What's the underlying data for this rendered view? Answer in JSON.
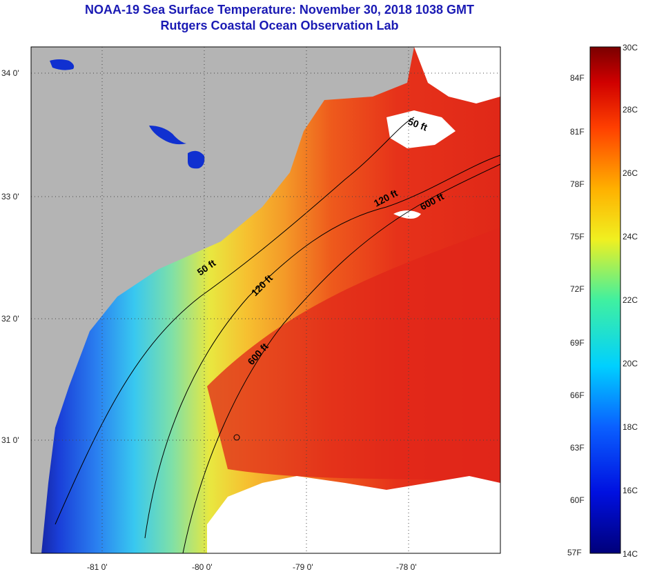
{
  "header": {
    "title": "NOAA-19 Sea Surface Temperature:  November 30, 2018 1038 GMT",
    "subtitle": "Rutgers Coastal Ocean Observation Lab"
  },
  "map": {
    "lat_labels": [
      "34 0'",
      "33 0'",
      "32 0'",
      "31 0'"
    ],
    "lon_labels": [
      "-81 0'",
      "-80 0'",
      "-79 0'",
      "-78 0'"
    ],
    "contour_labels": [
      "50 ft",
      "120 ft",
      "600 ft",
      "50 ft",
      "120 ft",
      "600 ft"
    ]
  },
  "colorbar": {
    "fahrenheit": [
      "84F",
      "81F",
      "78F",
      "75F",
      "72F",
      "69F",
      "66F",
      "63F",
      "60F",
      "57F"
    ],
    "celsius": [
      "30C",
      "28C",
      "26C",
      "24C",
      "22C",
      "20C",
      "18C",
      "16C",
      "14C"
    ]
  },
  "colors": {
    "land": "#b4b4b4",
    "title": "#1a1ab4",
    "cold": "#00007a",
    "hot": "#7a0000"
  }
}
